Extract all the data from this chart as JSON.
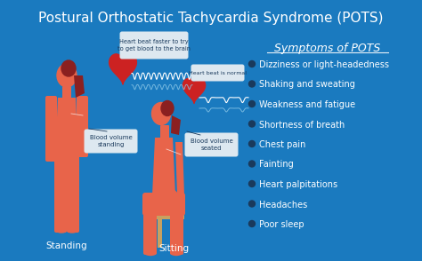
{
  "title": "Postural Orthostatic Tachycardia Syndrome (POTS)",
  "background_color": "#1a7abf",
  "title_fontsize": 11,
  "symptoms_title": "Symptoms of POTS",
  "symptoms": [
    "Dizziness or light-headedness",
    "Shaking and sweating",
    "Weakness and fatigue",
    "Shortness of breath",
    "Chest pain",
    "Fainting",
    "Heart palpitations",
    "Headaches",
    "Poor sleep"
  ],
  "label_standing": "Standing",
  "label_sitting": "Sitting",
  "label_blood_standing": "Blood volume\nstanding",
  "label_blood_seated": "Blood volume\nseated",
  "label_heart_faster": "Heart beat faster to try\nto get blood to the brain",
  "label_heart_normal": "Heart beat is normal",
  "body_color": "#e8644a",
  "heart_color": "#cc2222",
  "callout_bg": "#dde8f0",
  "callout_text": "#1a3a5c",
  "text_color": "#ffffff",
  "stool_color": "#c8a060",
  "hair_color": "#8B2020",
  "skin_light": "#e87060"
}
